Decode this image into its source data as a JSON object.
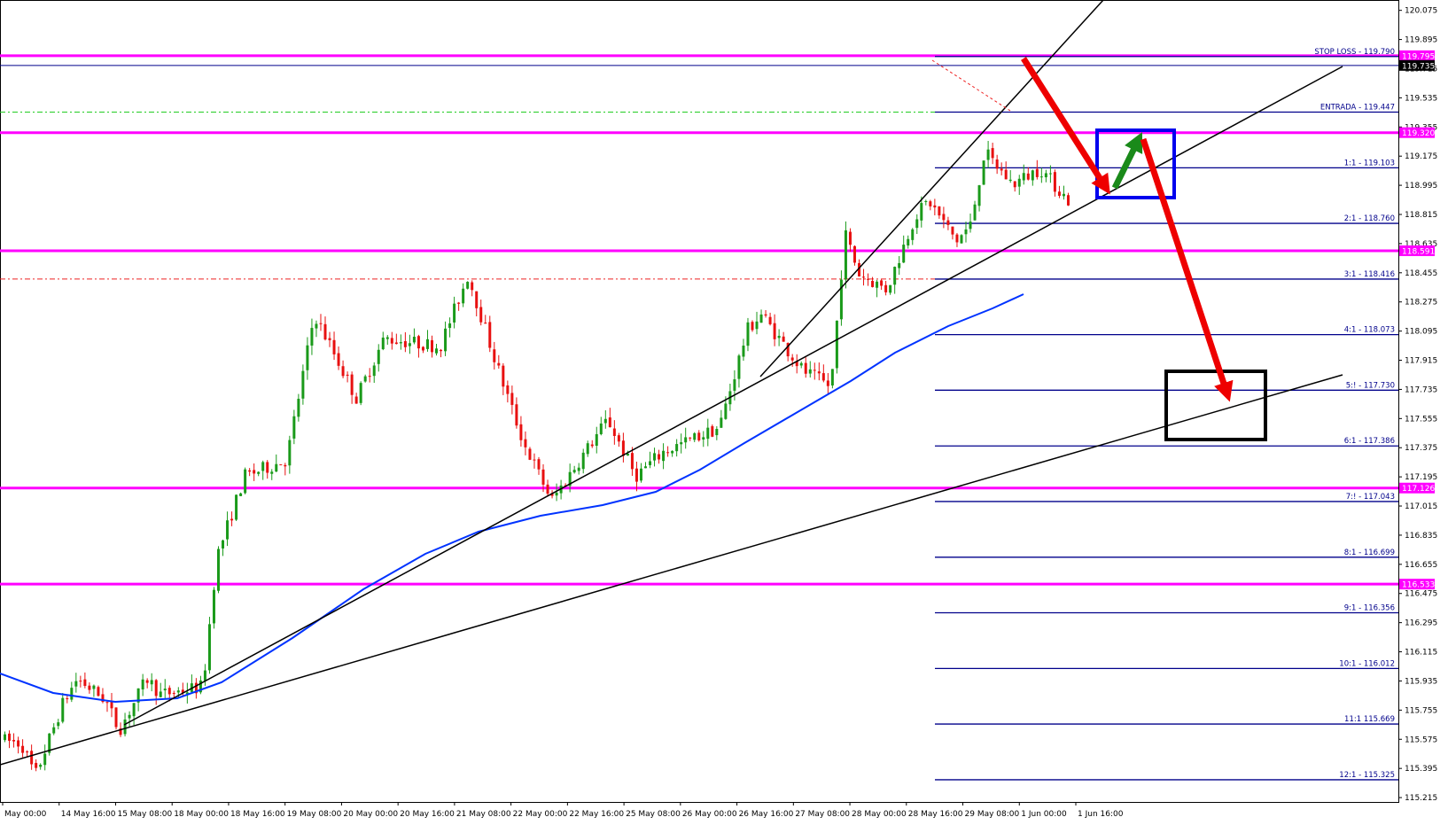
{
  "chart_data": {
    "type": "candlestick",
    "y_axis": {
      "ylim": [
        115.188,
        120.117
      ],
      "ticks": [
        "120.075",
        "119.895",
        "119.715",
        "119.535",
        "119.355",
        "119.175",
        "118.995",
        "118.815",
        "118.635",
        "118.455",
        "118.275",
        "118.095",
        "117.915",
        "117.735",
        "117.555",
        "117.375",
        "117.195",
        "117.015",
        "116.835",
        "116.655",
        "116.475",
        "116.295",
        "116.115",
        "115.935",
        "115.755",
        "115.575",
        "115.395",
        "115.215"
      ]
    },
    "x_axis": {
      "ticks": [
        "May 00:00",
        "14 May 16:00",
        "15 May 08:00",
        "18 May 00:00",
        "18 May 16:00",
        "19 May 08:00",
        "20 May 00:00",
        "20 May 16:00",
        "21 May 08:00",
        "22 May 00:00",
        "22 May 16:00",
        "25 May 08:00",
        "26 May 00:00",
        "26 May 16:00",
        "27 May 08:00",
        "28 May 00:00",
        "28 May 16:00",
        "29 May 08:00",
        "1 Jun 00:00",
        "1 Jun 16:00"
      ]
    },
    "price_path_anchors": [
      [
        0,
        115.58
      ],
      [
        0.02,
        115.55
      ],
      [
        0.03,
        115.35
      ],
      [
        0.05,
        115.8
      ],
      [
        0.06,
        115.95
      ],
      [
        0.08,
        115.82
      ],
      [
        0.09,
        115.63
      ],
      [
        0.11,
        115.95
      ],
      [
        0.12,
        115.85
      ],
      [
        0.15,
        115.9
      ],
      [
        0.16,
        116.7
      ],
      [
        0.18,
        117.2
      ],
      [
        0.21,
        117.3
      ],
      [
        0.23,
        118.2
      ],
      [
        0.26,
        117.68
      ],
      [
        0.28,
        118.05
      ],
      [
        0.32,
        118.0
      ],
      [
        0.34,
        118.44
      ],
      [
        0.36,
        117.9
      ],
      [
        0.38,
        117.4
      ],
      [
        0.4,
        117.05
      ],
      [
        0.44,
        117.55
      ],
      [
        0.46,
        117.2
      ],
      [
        0.48,
        117.35
      ],
      [
        0.52,
        117.5
      ],
      [
        0.54,
        118.1
      ],
      [
        0.55,
        118.2
      ],
      [
        0.58,
        117.85
      ],
      [
        0.6,
        117.75
      ],
      [
        0.61,
        118.7
      ],
      [
        0.62,
        118.45
      ],
      [
        0.64,
        118.35
      ],
      [
        0.66,
        118.8
      ],
      [
        0.67,
        118.9
      ],
      [
        0.69,
        118.65
      ],
      [
        0.7,
        118.75
      ],
      [
        0.71,
        119.2
      ],
      [
        0.73,
        119.0
      ],
      [
        0.75,
        119.1
      ],
      [
        0.77,
        118.9
      ],
      [
        0.79,
        119.3
      ],
      [
        0.81,
        119.7
      ],
      [
        0.83,
        119.5
      ],
      [
        0.86,
        119.85
      ],
      [
        0.88,
        119.6
      ],
      [
        0.89,
        119.75
      ]
    ],
    "horizontal_levels": [
      {
        "value": 119.795,
        "label": "119.795",
        "color": "#ff00ff"
      },
      {
        "value": 119.32,
        "label": "119.320",
        "color": "#ff00ff"
      },
      {
        "value": 118.591,
        "label": "118.591",
        "color": "#ff00ff"
      },
      {
        "value": 117.126,
        "label": "117.126",
        "color": "#ff00ff"
      },
      {
        "value": 116.533,
        "label": "116.533",
        "color": "#ff00ff"
      }
    ],
    "current_price": {
      "value": 119.735,
      "label": "119.735"
    },
    "trade_levels": [
      {
        "value": 119.79,
        "label": "STOP LOSS - 119.790"
      },
      {
        "value": 119.447,
        "label": "ENTRADA - 119.447"
      },
      {
        "value": 119.103,
        "label": "1:1 - 119.103"
      },
      {
        "value": 118.76,
        "label": "2:1 - 118.760"
      },
      {
        "value": 118.416,
        "label": "3:1 - 118.416"
      },
      {
        "value": 118.073,
        "label": "4:1 - 118.073"
      },
      {
        "value": 117.73,
        "label": "5:! - 117.730"
      },
      {
        "value": 117.386,
        "label": "6:1 - 117.386"
      },
      {
        "value": 117.043,
        "label": "7:! - 117.043"
      },
      {
        "value": 116.699,
        "label": "8:1 - 116.699"
      },
      {
        "value": 116.356,
        "label": "9:1 - 116.356"
      },
      {
        "value": 116.012,
        "label": "10:1 - 116.012"
      },
      {
        "value": 115.669,
        "label": "11:1 115.669"
      },
      {
        "value": 115.325,
        "label": "12:1 - 115.325"
      }
    ],
    "colors": {
      "bull": "#1a9a1a",
      "bear": "#e81010",
      "level": "#ff00ff",
      "trade_line": "#00008b",
      "moving_average": "#0033ff",
      "trendline": "#000000",
      "arrow_down": "#ee0000",
      "arrow_up": "#1a8a1a",
      "box_blue": "#0000ee",
      "box_black": "#000000",
      "current_price_box": "#000000"
    }
  }
}
